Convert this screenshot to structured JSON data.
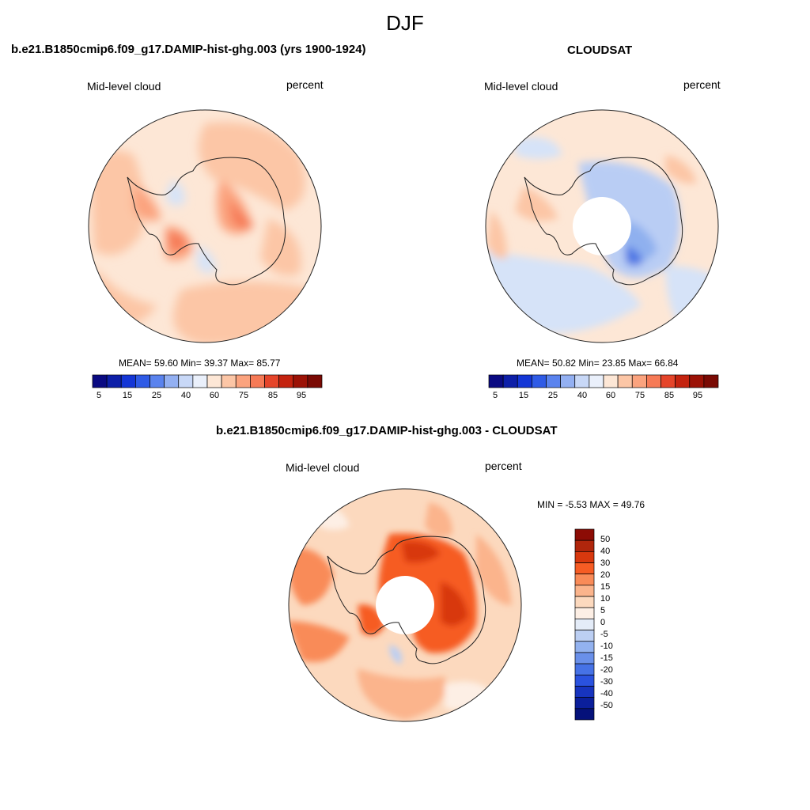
{
  "main_title": "DJF",
  "panels": [
    {
      "title": "b.e21.B1850cmip6.f09_g17.DAMIP-hist-ghg.003 (yrs 1900-1924)",
      "left_label": "Mid-level cloud",
      "right_label": "percent",
      "stats": "MEAN=  59.60  Min=  39.37  Max=  85.77"
    },
    {
      "title": "CLOUDSAT",
      "left_label": "Mid-level cloud",
      "right_label": "percent",
      "stats": "MEAN=  50.82  Min=  23.85  Max=  66.84"
    },
    {
      "title": "b.e21.B1850cmip6.f09_g17.DAMIP-hist-ghg.003 - CLOUDSAT",
      "left_label": "Mid-level cloud",
      "right_label": "percent",
      "stats": "MIN =  -5.53 MAX =  49.76"
    }
  ],
  "abs_colorbar": {
    "colors": [
      "#0a0a82",
      "#0d1fa8",
      "#1436d6",
      "#2f5be6",
      "#5a83ee",
      "#93b0f2",
      "#c8d8f7",
      "#eaf0fb",
      "#fde7d6",
      "#fcc6a6",
      "#fba37e",
      "#f67a56",
      "#e5452a",
      "#c4230f",
      "#9c1206",
      "#7a0a04"
    ],
    "tick_labels": [
      "5",
      "15",
      "25",
      "40",
      "60",
      "75",
      "85",
      "95"
    ]
  },
  "diff_colorbar": {
    "colors": [
      "#8c0c05",
      "#b0260c",
      "#d8380e",
      "#f65c24",
      "#f98b58",
      "#fbb48c",
      "#fcd9be",
      "#fdefe5",
      "#e4ecf8",
      "#bccff3",
      "#93b2ef",
      "#6a90ea",
      "#4672e6",
      "#2a52df",
      "#1734bf",
      "#0b1f9b",
      "#05117a"
    ],
    "tick_labels": [
      "50",
      "40",
      "30",
      "20",
      "15",
      "10",
      "5",
      "0",
      "-5",
      "-10",
      "-15",
      "-20",
      "-30",
      "-40",
      "-50"
    ]
  },
  "map_colors": {
    "base_warm": "#fde7d6",
    "light_warm": "#fcc6a6",
    "mid_warm": "#fba37e",
    "strong_warm": "#f67a56",
    "deep_warm": "#e5452a",
    "pale_blue": "#d6e3f8",
    "light_blue": "#b9cdf4",
    "mid_blue": "#8fb0ef",
    "dark_blue": "#4f78e4",
    "coast": "#222222"
  }
}
